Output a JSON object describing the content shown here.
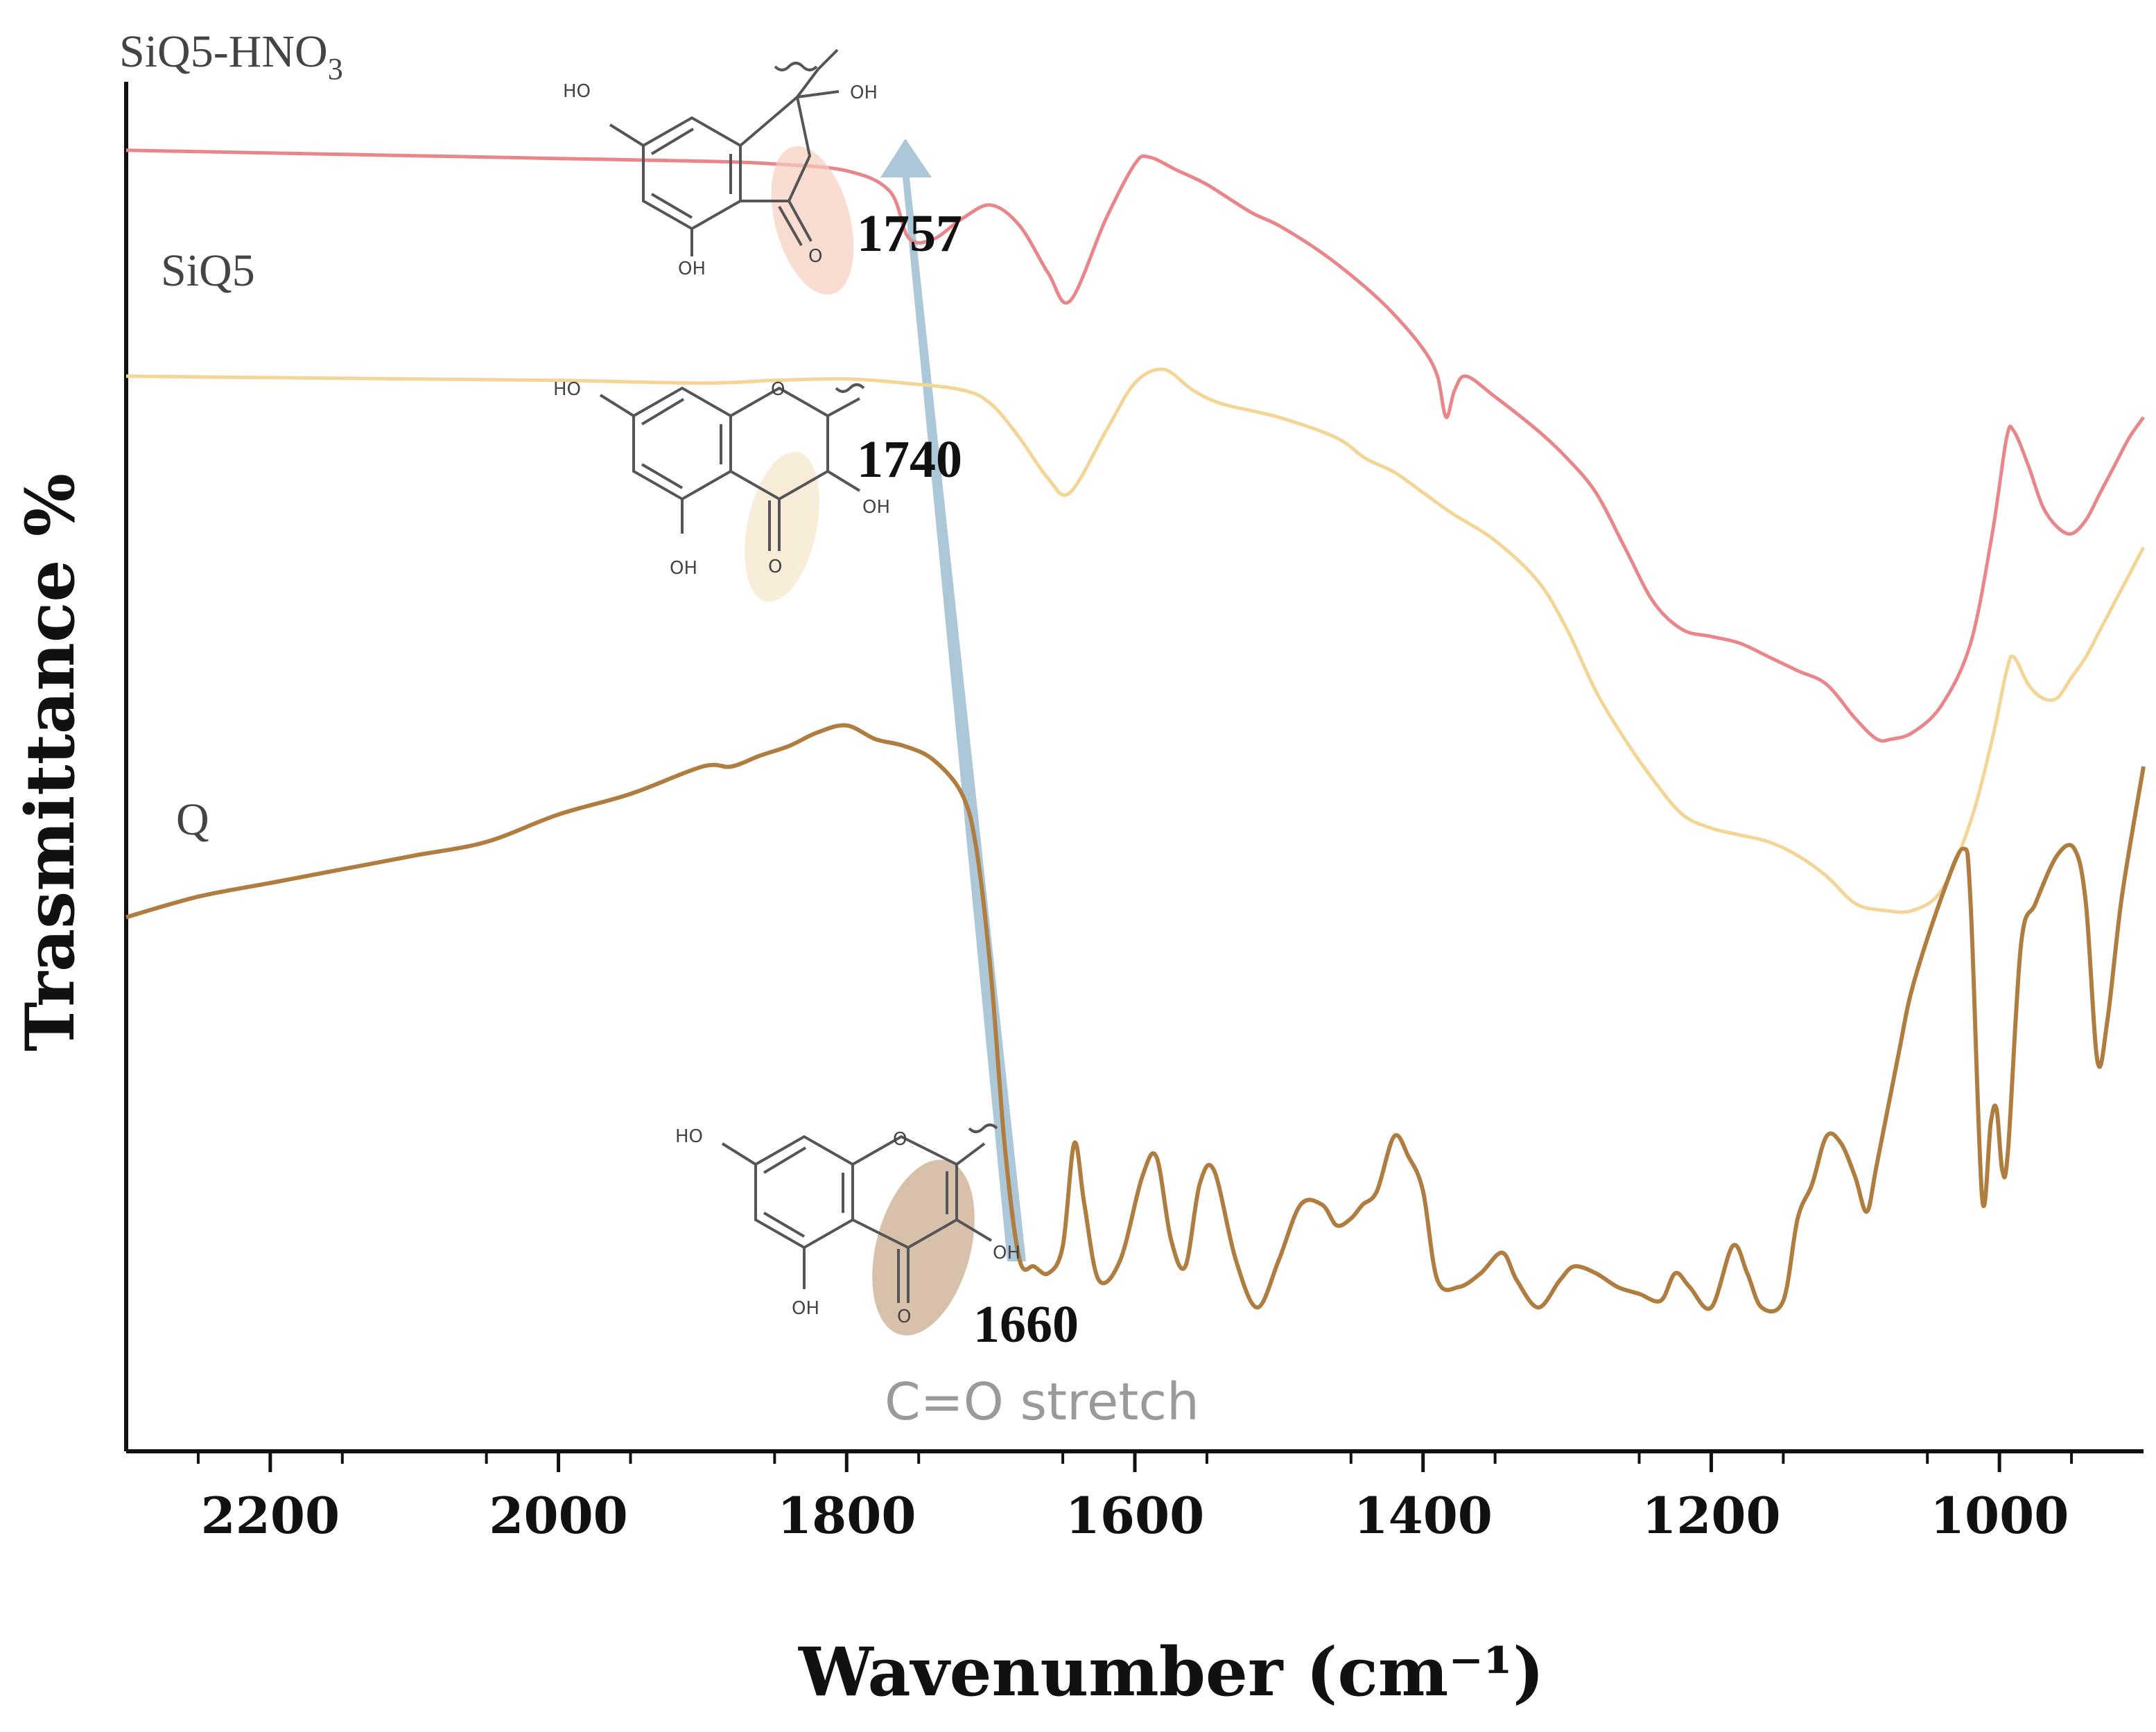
{
  "chart_data": {
    "type": "line",
    "title": "",
    "xlabel": "Wavenumber (cm⁻¹)",
    "ylabel": "Trasmittance %",
    "xlim": [
      2300,
      900
    ],
    "ylim": [
      0,
      100
    ],
    "x_reversed": true,
    "y_ticks_shown": false,
    "x_ticks": [
      2200,
      2000,
      1800,
      1600,
      1400,
      1200,
      1000
    ],
    "x_tick_labels": [
      "2200",
      "2000",
      "1800",
      "1600",
      "1400",
      "1200",
      "1000"
    ],
    "series": [
      {
        "name": "SiQ5-HNO3",
        "label_main": "SiQ5-HNO",
        "label_sub": "3",
        "color": "#e8868a",
        "x": [
          2300,
          2200,
          2100,
          2000,
          1900,
          1850,
          1800,
          1770,
          1757,
          1740,
          1720,
          1700,
          1680,
          1660,
          1645,
          1620,
          1600,
          1590,
          1570,
          1550,
          1520,
          1500,
          1470,
          1440,
          1420,
          1400,
          1390,
          1384,
          1378,
          1370,
          1350,
          1320,
          1300,
          1280,
          1260,
          1240,
          1220,
          1200,
          1180,
          1160,
          1140,
          1120,
          1100,
          1085,
          1075,
          1060,
          1040,
          1020,
          1005,
          995,
          990,
          980,
          970,
          960,
          950,
          940,
          930,
          920,
          910,
          900
        ],
        "y": [
          95.0,
          94.8,
          94.6,
          94.4,
          94.2,
          94.0,
          93.5,
          92.0,
          88.6,
          88.5,
          90.0,
          91.0,
          89.5,
          86.0,
          84.0,
          90.0,
          94.0,
          94.5,
          93.5,
          92.5,
          90.5,
          89.5,
          87.5,
          85.0,
          83.0,
          80.5,
          78.5,
          75.5,
          77.5,
          78.5,
          77.0,
          74.5,
          72.5,
          70.0,
          66.0,
          62.0,
          60.0,
          59.5,
          59.0,
          58.0,
          57.0,
          56.0,
          53.5,
          52.0,
          52.0,
          52.5,
          54.5,
          59.0,
          67.0,
          74.0,
          74.5,
          72.0,
          69.0,
          67.5,
          67.0,
          68.0,
          70.0,
          72.0,
          74.0,
          75.5
        ]
      },
      {
        "name": "SiQ5",
        "color": "#f3d596",
        "x": [
          2300,
          2200,
          2100,
          2000,
          1900,
          1850,
          1800,
          1760,
          1720,
          1700,
          1680,
          1660,
          1645,
          1620,
          1600,
          1580,
          1560,
          1540,
          1500,
          1460,
          1440,
          1420,
          1400,
          1380,
          1350,
          1320,
          1300,
          1280,
          1260,
          1240,
          1220,
          1200,
          1180,
          1160,
          1140,
          1120,
          1100,
          1080,
          1060,
          1040,
          1020,
          1005,
          995,
          990,
          980,
          970,
          960,
          950,
          940,
          930,
          920,
          910,
          900
        ],
        "y": [
          78.5,
          78.4,
          78.3,
          78.2,
          78.0,
          78.2,
          78.3,
          78.0,
          77.5,
          76.5,
          74.0,
          71.0,
          70.0,
          74.5,
          78.0,
          79.0,
          77.5,
          76.5,
          75.5,
          74.0,
          72.5,
          71.5,
          70.0,
          68.5,
          66.5,
          63.5,
          60.0,
          55.5,
          52.0,
          49.0,
          46.5,
          45.5,
          45.0,
          44.5,
          43.5,
          42.0,
          40.0,
          39.5,
          39.5,
          41.0,
          46.0,
          52.0,
          57.0,
          58.0,
          56.0,
          55.0,
          55.0,
          56.5,
          58.0,
          60.0,
          62.0,
          64.0,
          66.0
        ]
      },
      {
        "name": "Q",
        "color": "#b07d40",
        "x": [
          2300,
          2250,
          2200,
          2150,
          2100,
          2050,
          2000,
          1950,
          1900,
          1880,
          1860,
          1840,
          1820,
          1800,
          1780,
          1760,
          1740,
          1720,
          1710,
          1700,
          1690,
          1680,
          1670,
          1660,
          1650,
          1642,
          1635,
          1625,
          1610,
          1595,
          1585,
          1575,
          1565,
          1555,
          1545,
          1530,
          1515,
          1500,
          1485,
          1470,
          1460,
          1450,
          1442,
          1432,
          1420,
          1410,
          1400,
          1390,
          1375,
          1360,
          1345,
          1335,
          1320,
          1305,
          1295,
          1280,
          1265,
          1250,
          1235,
          1225,
          1215,
          1200,
          1185,
          1175,
          1165,
          1150,
          1140,
          1130,
          1120,
          1110,
          1100,
          1092,
          1085,
          1070,
          1060,
          1040,
          1025,
          1020,
          1012,
          1006,
          1002,
          998,
          994,
          985,
          975,
          960,
          948,
          940,
          932,
          925,
          915,
          900
        ],
        "y": [
          39.0,
          40.5,
          41.5,
          42.5,
          43.5,
          44.5,
          46.5,
          48.0,
          50.0,
          50.0,
          50.8,
          51.5,
          52.5,
          53.0,
          52.0,
          51.5,
          50.5,
          48.0,
          44.0,
          35.0,
          22.0,
          14.0,
          13.5,
          13.0,
          15.0,
          22.5,
          18.0,
          12.5,
          14.0,
          20.0,
          21.5,
          15.5,
          13.5,
          19.5,
          20.5,
          14.0,
          10.5,
          14.0,
          18.0,
          18.0,
          16.5,
          17.0,
          18.0,
          19.0,
          23.0,
          21.5,
          19.0,
          12.5,
          12.0,
          13.0,
          14.5,
          12.5,
          10.5,
          12.5,
          13.5,
          13.0,
          12.0,
          11.5,
          11.0,
          13.0,
          12.0,
          10.5,
          15.0,
          13.0,
          10.5,
          11.0,
          17.0,
          19.5,
          23.0,
          22.5,
          20.0,
          17.5,
          21.0,
          29.0,
          34.0,
          40.5,
          44.0,
          40.0,
          18.5,
          24.0,
          25.0,
          20.5,
          22.0,
          37.0,
          40.0,
          43.5,
          44.0,
          40.0,
          28.5,
          31.5,
          40.5,
          50.0
        ]
      }
    ],
    "annotations": {
      "peak_siq5_hno3": "1757",
      "peak_siq5": "1740",
      "peak_q": "1660",
      "note": "C=O stretch"
    },
    "molecule_labels": {
      "oh": "OH",
      "ho": "HO",
      "o": "O"
    }
  },
  "colors": {
    "siq5_hno3": "#e8868a",
    "siq5": "#f3d596",
    "q": "#b07d40",
    "arrow": "#9dbdd0",
    "axis": "#111111"
  }
}
